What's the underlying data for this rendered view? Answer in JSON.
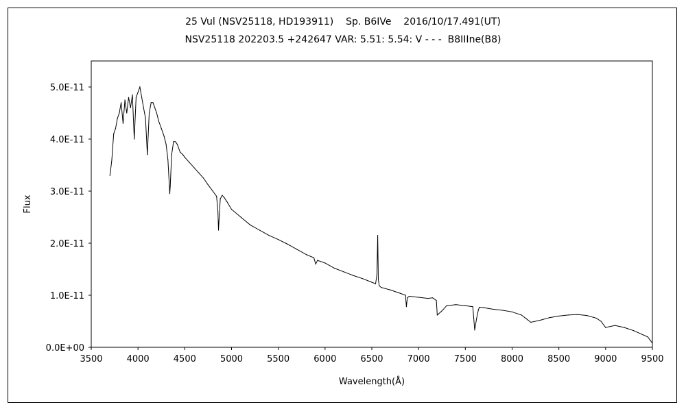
{
  "chart_data": {
    "type": "line",
    "title": "25 Vul (NSV25118, HD193911)    Sp. B6IVe    2016/10/17.491(UT)",
    "subtitle": "NSV25118 202203.5 +242647 VAR: 5.51: 5.54: V - - -  B8IIIne(B8)",
    "xlabel": "Wavelength(Å)",
    "ylabel": "Flux",
    "xlim": [
      3500,
      9500
    ],
    "ylim": [
      0,
      5.5e-11
    ],
    "xticks": [
      "3500",
      "4000",
      "4500",
      "5000",
      "5500",
      "6000",
      "6500",
      "7000",
      "7500",
      "8000",
      "8500",
      "9000",
      "9500"
    ],
    "yticks": [
      "0.0E+00",
      "1.0E-11",
      "2.0E-11",
      "3.0E-11",
      "4.0E-11",
      "5.0E-11"
    ],
    "grid": false,
    "series": [
      {
        "x": [
          3700,
          3720,
          3740,
          3760,
          3780,
          3800,
          3820,
          3840,
          3860,
          3880,
          3900,
          3920,
          3940,
          3960,
          3980,
          4000,
          4020,
          4040,
          4060,
          4080,
          4100,
          4120,
          4140,
          4160,
          4180,
          4200,
          4220,
          4250,
          4280,
          4300,
          4320,
          4340,
          4345,
          4360,
          4380,
          4400,
          4420,
          4450,
          4480,
          4500,
          4550,
          4600,
          4650,
          4700,
          4750,
          4800,
          4840,
          4855,
          4861,
          4870,
          4880,
          4900,
          4920,
          4950,
          5000,
          5100,
          5200,
          5300,
          5400,
          5500,
          5600,
          5700,
          5800,
          5880,
          5900,
          5920,
          6000,
          6100,
          6200,
          6300,
          6400,
          6500,
          6540,
          6555,
          6563,
          6570,
          6580,
          6600,
          6700,
          6800,
          6860,
          6870,
          6880,
          6900,
          7000,
          7100,
          7150,
          7190,
          7200,
          7250,
          7300,
          7400,
          7500,
          7580,
          7600,
          7620,
          7640,
          7650,
          7700,
          7800,
          7900,
          8000,
          8100,
          8150,
          8200,
          8300,
          8400,
          8500,
          8600,
          8700,
          8800,
          8900,
          8950,
          9000,
          9100,
          9200,
          9300,
          9400,
          9450,
          9500
        ],
        "y": [
          3.3e-11,
          3.6e-11,
          4.1e-11,
          4.2e-11,
          4.4e-11,
          4.5e-11,
          4.7e-11,
          4.3e-11,
          4.75e-11,
          4.5e-11,
          4.8e-11,
          4.6e-11,
          4.85e-11,
          4e-11,
          4.8e-11,
          4.9e-11,
          5e-11,
          4.8e-11,
          4.6e-11,
          4.4e-11,
          3.7e-11,
          4.5e-11,
          4.7e-11,
          4.7e-11,
          4.6e-11,
          4.5e-11,
          4.35e-11,
          4.2e-11,
          4.05e-11,
          3.9e-11,
          3.6e-11,
          2.95e-11,
          3.1e-11,
          3.7e-11,
          3.95e-11,
          3.95e-11,
          3.9e-11,
          3.75e-11,
          3.7e-11,
          3.65e-11,
          3.55e-11,
          3.45e-11,
          3.35e-11,
          3.25e-11,
          3.12e-11,
          3e-11,
          2.9e-11,
          2.6e-11,
          2.25e-11,
          2.55e-11,
          2.85e-11,
          2.92e-11,
          2.88e-11,
          2.8e-11,
          2.65e-11,
          2.5e-11,
          2.35e-11,
          2.25e-11,
          2.15e-11,
          2.07e-11,
          1.98e-11,
          1.88e-11,
          1.78e-11,
          1.72e-11,
          1.6e-11,
          1.67e-11,
          1.62e-11,
          1.52e-11,
          1.45e-11,
          1.38e-11,
          1.32e-11,
          1.25e-11,
          1.22e-11,
          1.4e-11,
          2.15e-11,
          1.3e-11,
          1.18e-11,
          1.15e-11,
          1.1e-11,
          1.04e-11,
          1e-11,
          7.8e-12,
          9.5e-12,
          9.8e-12,
          9.6e-12,
          9.4e-12,
          9.5e-12,
          9e-12,
          6.2e-12,
          7e-12,
          8e-12,
          8.2e-12,
          8e-12,
          7.8e-12,
          3.3e-12,
          5.5e-12,
          7.2e-12,
          7.7e-12,
          7.6e-12,
          7.3e-12,
          7.1e-12,
          6.8e-12,
          6.2e-12,
          5.5e-12,
          4.8e-12,
          5.2e-12,
          5.7e-12,
          6e-12,
          6.2e-12,
          6.3e-12,
          6.1e-12,
          5.6e-12,
          5e-12,
          3.8e-12,
          4.2e-12,
          3.8e-12,
          3.2e-12,
          2.4e-12,
          2e-12,
          8e-13
        ]
      }
    ]
  }
}
